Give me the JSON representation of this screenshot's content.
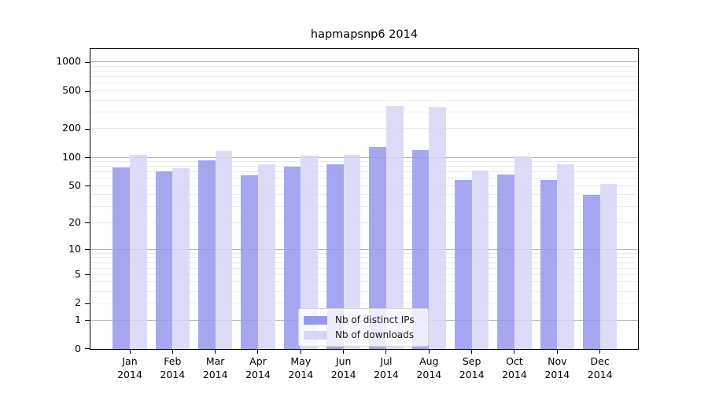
{
  "title": "hapmapsnp6 2014",
  "chart_data": {
    "type": "bar",
    "title": "hapmapsnp6 2014",
    "xlabel": "",
    "ylabel": "",
    "categories": [
      "Jan",
      "Feb",
      "Mar",
      "Apr",
      "May",
      "Jun",
      "Jul",
      "Aug",
      "Sep",
      "Oct",
      "Nov",
      "Dec"
    ],
    "category_year": "2014",
    "series": [
      {
        "name": "Nb of distinct IPs",
        "color": "#9898ee",
        "values": [
          78,
          71,
          93,
          64,
          80,
          85,
          129,
          119,
          58,
          66,
          57,
          40
        ]
      },
      {
        "name": "Nb of downloads",
        "color": "#d6d6f8",
        "values": [
          107,
          77,
          117,
          84,
          105,
          107,
          346,
          339,
          72,
          103,
          84,
          52
        ]
      }
    ],
    "yscale": "log1p",
    "ylim": [
      0,
      1380
    ],
    "yticks": [
      0,
      1,
      2,
      5,
      10,
      20,
      50,
      100,
      200,
      500,
      1000
    ],
    "ytick_labels": [
      "0",
      "1",
      "2",
      "5",
      "10",
      "20",
      "50",
      "100",
      "200",
      "500",
      "1000"
    ],
    "grid": {
      "major": [
        1,
        10,
        100,
        1000
      ],
      "minor": [
        2,
        3,
        4,
        5,
        6,
        7,
        8,
        9,
        20,
        30,
        40,
        50,
        60,
        70,
        80,
        90,
        200,
        300,
        400,
        500,
        600,
        700,
        800,
        900
      ]
    },
    "legend_position": "lower center",
    "legend_entries": [
      "Nb of distinct IPs",
      "Nb of downloads"
    ]
  },
  "colors": {
    "axis": "#000000",
    "major_grid": "#b3b3b3",
    "minor_grid": "#ebebeb",
    "background": "#ffffff"
  }
}
